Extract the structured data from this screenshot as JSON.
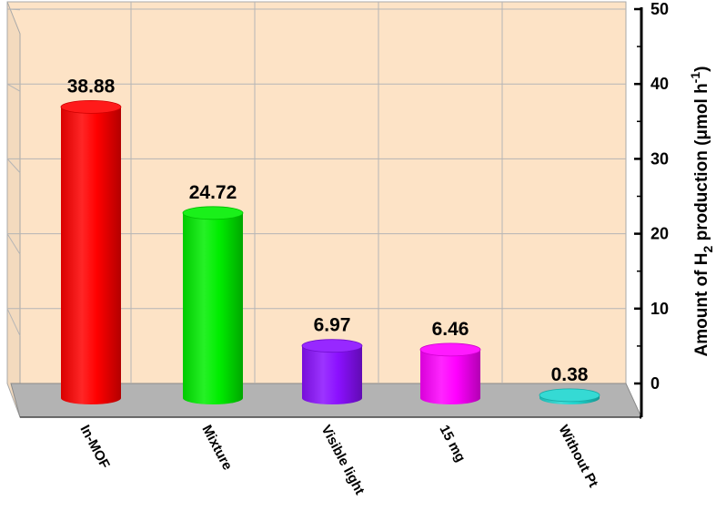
{
  "chart_data": {
    "type": "bar",
    "categories": [
      "In-MOF",
      "Mixture",
      "Visible light",
      "15 mg",
      "Without Pt"
    ],
    "values": [
      38.88,
      24.72,
      6.97,
      6.46,
      0.38
    ],
    "value_labels": [
      "38.88",
      "24.72",
      "6.97",
      "6.46",
      "0.38"
    ],
    "colors": [
      "#ff0000",
      "#00ee00",
      "#8b10ff",
      "#ff00ff",
      "#1fd6cf"
    ],
    "ylim": [
      0,
      50
    ],
    "yticks": [
      "0",
      "10",
      "20",
      "30",
      "40",
      "50"
    ],
    "ylabel": {
      "prefix": "Amount of H",
      "sub": "2",
      "mid": " production (μmol h",
      "sup": "-1",
      "suffix": ")"
    },
    "grid": true,
    "style": "3d-cylinder",
    "wall_color": "#fde3c6",
    "floor_color": "#b3b3b3"
  }
}
